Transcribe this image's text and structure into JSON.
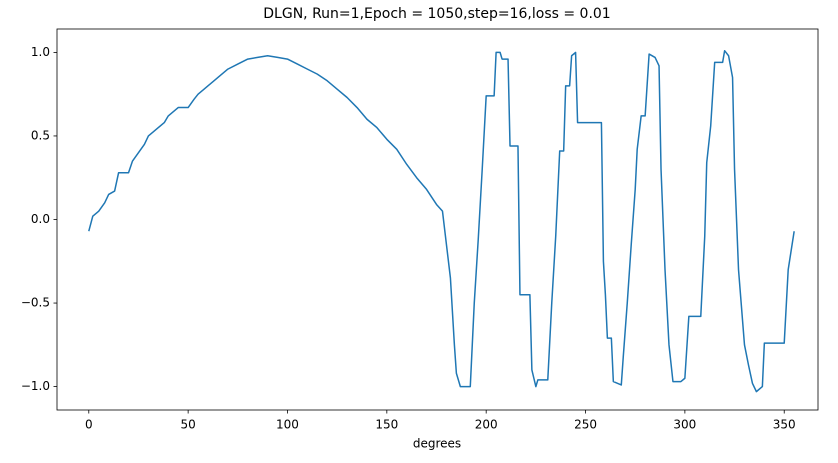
{
  "chart_data": {
    "type": "line",
    "title": "DLGN, Run=1,Epoch = 1050,step=16,loss = 0.01",
    "xlabel": "degrees",
    "color": "#1f77b4",
    "grid": false,
    "xlim": [
      -16,
      367
    ],
    "ylim": [
      -1.14,
      1.14
    ],
    "xticks": [
      0,
      50,
      100,
      150,
      200,
      250,
      300,
      350
    ],
    "yticks": [
      {
        "value": -1.0,
        "label": "−1.0"
      },
      {
        "value": -0.5,
        "label": "−0.5"
      },
      {
        "value": 0,
        "label": "0.0"
      },
      {
        "value": 0.5,
        "label": "0.5"
      },
      {
        "value": 1.0,
        "label": "1.0"
      }
    ],
    "x": [
      0,
      2,
      5,
      8,
      10,
      13,
      15,
      20,
      22,
      25,
      28,
      30,
      33,
      35,
      38,
      40,
      45,
      50,
      53,
      55,
      58,
      60,
      63,
      65,
      70,
      75,
      80,
      85,
      90,
      95,
      100,
      105,
      110,
      115,
      120,
      125,
      130,
      135,
      140,
      145,
      150,
      155,
      160,
      165,
      170,
      175,
      178,
      180,
      182,
      184,
      185,
      187,
      192,
      194,
      196,
      198,
      200,
      204,
      205,
      207,
      208,
      211,
      212,
      216,
      217,
      222,
      223,
      225,
      226,
      231,
      233,
      235,
      237,
      239,
      240,
      242,
      243,
      245,
      246,
      258,
      259,
      260,
      261,
      263,
      264,
      268,
      269,
      271,
      273,
      275,
      276,
      278,
      280,
      282,
      285,
      287,
      288,
      290,
      292,
      294,
      298,
      300,
      302,
      308,
      310,
      311,
      313,
      315,
      319,
      320,
      322,
      324,
      325,
      327,
      330,
      332,
      334,
      336,
      339,
      340,
      350,
      352,
      355
    ],
    "values": [
      -0.07,
      0.02,
      0.05,
      0.1,
      0.15,
      0.17,
      0.28,
      0.28,
      0.35,
      0.4,
      0.45,
      0.5,
      0.53,
      0.55,
      0.58,
      0.62,
      0.67,
      0.67,
      0.72,
      0.75,
      0.78,
      0.8,
      0.83,
      0.85,
      0.9,
      0.93,
      0.96,
      0.97,
      0.98,
      0.97,
      0.96,
      0.93,
      0.9,
      0.87,
      0.83,
      0.78,
      0.73,
      0.67,
      0.6,
      0.55,
      0.48,
      0.42,
      0.33,
      0.25,
      0.18,
      0.09,
      0.05,
      -0.15,
      -0.35,
      -0.75,
      -0.92,
      -1.0,
      -1.0,
      -0.5,
      -0.12,
      0.3,
      0.74,
      0.74,
      1.0,
      1.0,
      0.96,
      0.96,
      0.44,
      0.44,
      -0.45,
      -0.45,
      -0.9,
      -1.0,
      -0.96,
      -0.96,
      -0.5,
      -0.1,
      0.41,
      0.41,
      0.8,
      0.8,
      0.98,
      1.0,
      0.58,
      0.58,
      -0.25,
      -0.45,
      -0.71,
      -0.71,
      -0.97,
      -0.99,
      -0.82,
      -0.5,
      -0.15,
      0.18,
      0.42,
      0.62,
      0.62,
      0.99,
      0.97,
      0.92,
      0.3,
      -0.3,
      -0.75,
      -0.97,
      -0.97,
      -0.95,
      -0.58,
      -0.58,
      -0.1,
      0.34,
      0.56,
      0.94,
      0.94,
      1.01,
      0.98,
      0.85,
      0.3,
      -0.3,
      -0.75,
      -0.87,
      -0.98,
      -1.03,
      -1.0,
      -0.74,
      -0.74,
      -0.3,
      -0.07
    ]
  }
}
